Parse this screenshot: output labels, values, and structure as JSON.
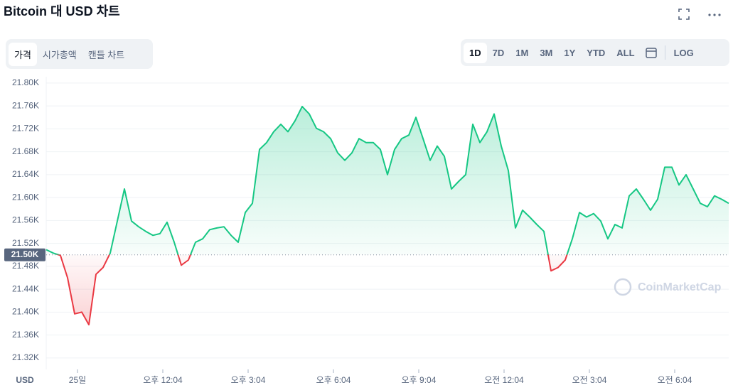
{
  "title": "Bitcoin 대 USD 차트",
  "tabs": [
    "가격",
    "시가총액",
    "캔들 차트"
  ],
  "ranges": [
    "1D",
    "7D",
    "1M",
    "3M",
    "1Y",
    "YTD",
    "ALL"
  ],
  "log_button": "LOG",
  "chart_data": {
    "type": "line",
    "currency": "USD",
    "watermark": "CoinMarketCap",
    "color": "#16c784",
    "below_color": "#ea3943",
    "baseline": {
      "value": 21500,
      "label": "21.50K"
    },
    "x": [
      0,
      0.25,
      0.5,
      0.75,
      1,
      1.25,
      1.5,
      1.75,
      2,
      2.25,
      2.5,
      2.75,
      3,
      3.25,
      3.5,
      3.75,
      4,
      4.25,
      4.5,
      4.75,
      5,
      5.25,
      5.5,
      5.75,
      6,
      6.25,
      6.5,
      6.75,
      7,
      7.25,
      7.5,
      7.75,
      8,
      8.25,
      8.5,
      8.75,
      9,
      9.25,
      9.5,
      9.75,
      10,
      10.25,
      10.5,
      10.75,
      11,
      11.25,
      11.5,
      11.75,
      12,
      12.25,
      12.5,
      12.75,
      13,
      13.25,
      13.5,
      13.75,
      14,
      14.25,
      14.5,
      14.75,
      15,
      15.25,
      15.5,
      15.75,
      16,
      16.25,
      16.5,
      16.75,
      17,
      17.25,
      17.5,
      17.75,
      18,
      18.25,
      18.5,
      18.75,
      19,
      19.25,
      19.5,
      19.75,
      20,
      20.25,
      20.5,
      20.75,
      21,
      21.25,
      21.5,
      21.75,
      22,
      22.25,
      22.5,
      22.75,
      23,
      23.25,
      23.5,
      23.75,
      24
    ],
    "values": [
      21509,
      21503,
      21499,
      21460,
      21397,
      21400,
      21378,
      21466,
      21478,
      21503,
      21559,
      21615,
      21559,
      21549,
      21541,
      21534,
      21537,
      21557,
      21522,
      21482,
      21491,
      21522,
      21528,
      21544,
      21547,
      21549,
      21534,
      21522,
      21574,
      21590,
      21684,
      21696,
      21715,
      21728,
      21715,
      21734,
      21759,
      21746,
      21721,
      21715,
      21703,
      21678,
      21665,
      21678,
      21703,
      21696,
      21696,
      21684,
      21640,
      21684,
      21703,
      21709,
      21740,
      21703,
      21665,
      21690,
      21672,
      21615,
      21628,
      21640,
      21728,
      21696,
      21715,
      21746,
      21690,
      21647,
      21547,
      21578,
      21566,
      21553,
      21541,
      21472,
      21478,
      21491,
      21528,
      21574,
      21566,
      21572,
      21559,
      21528,
      21553,
      21547,
      21603,
      21615,
      21597,
      21578,
      21597,
      21653,
      21653,
      21622,
      21640,
      21615,
      21590,
      21584,
      21603,
      21597,
      21590
    ],
    "xlim": [
      0,
      24
    ],
    "xticks": [
      {
        "value": 1.1,
        "label": "25일"
      },
      {
        "value": 4.1,
        "label": "오후 12:04"
      },
      {
        "value": 7.1,
        "label": "오후 3:04"
      },
      {
        "value": 10.1,
        "label": "오후 6:04"
      },
      {
        "value": 13.1,
        "label": "오후 9:04"
      },
      {
        "value": 16.1,
        "label": "오전 12:04"
      },
      {
        "value": 19.1,
        "label": "오전 3:04"
      },
      {
        "value": 22.1,
        "label": "오전 6:04"
      }
    ],
    "ylim": [
      21300,
      21811
    ],
    "yticks": [
      {
        "value": 21320,
        "label": "21.32K"
      },
      {
        "value": 21360,
        "label": "21.36K"
      },
      {
        "value": 21400,
        "label": "21.40K"
      },
      {
        "value": 21440,
        "label": "21.44K"
      },
      {
        "value": 21480,
        "label": "21.48K"
      },
      {
        "value": 21520,
        "label": "21.52K"
      },
      {
        "value": 21560,
        "label": "21.56K"
      },
      {
        "value": 21600,
        "label": "21.60K"
      },
      {
        "value": 21640,
        "label": "21.64K"
      },
      {
        "value": 21680,
        "label": "21.68K"
      },
      {
        "value": 21720,
        "label": "21.72K"
      },
      {
        "value": 21760,
        "label": "21.76K"
      },
      {
        "value": 21800,
        "label": "21.80K"
      }
    ],
    "grid": true
  }
}
